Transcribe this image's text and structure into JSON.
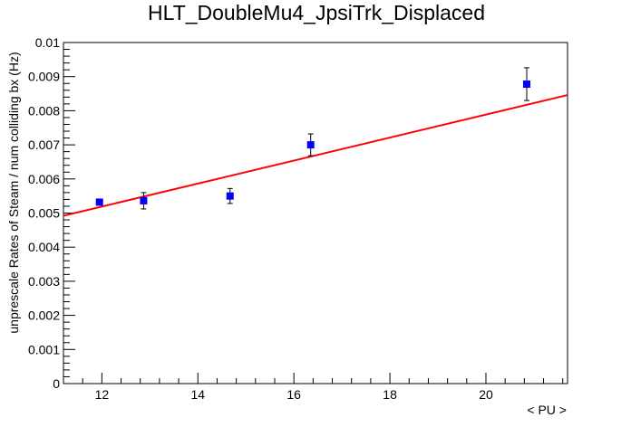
{
  "chart_data": {
    "type": "scatter",
    "title": "HLT_DoubleMu4_JpsiTrk_Displaced",
    "xlabel": "< PU >",
    "ylabel": "unprescale Rates of Steam / num colliding bx (Hz)",
    "xlim": [
      11.2,
      21.7
    ],
    "ylim": [
      0,
      0.01
    ],
    "x_ticks": [
      12,
      14,
      16,
      18,
      20
    ],
    "x_tick_labels": [
      "12",
      "14",
      "16",
      "18",
      "20"
    ],
    "y_ticks": [
      0,
      0.001,
      0.002,
      0.003,
      0.004,
      0.005,
      0.006,
      0.007,
      0.008,
      0.009,
      0.01
    ],
    "y_tick_labels": [
      "0",
      "0.001",
      "0.002",
      "0.003",
      "0.004",
      "0.005",
      "0.006",
      "0.007",
      "0.008",
      "0.009",
      "0.01"
    ],
    "grid": false,
    "legend": "none",
    "points": {
      "x": [
        11.95,
        12.87,
        14.67,
        16.35,
        20.85
      ],
      "y": [
        0.00532,
        0.00536,
        0.0055,
        0.007,
        0.00878
      ],
      "yerr": [
        8e-05,
        0.00024,
        0.00022,
        0.00032,
        0.00048
      ],
      "color": "#0000ff",
      "marker": "square"
    },
    "fit": {
      "type": "linear",
      "x": [
        11.2,
        21.7
      ],
      "y": [
        0.00492,
        0.00846
      ],
      "color": "#ff0000"
    }
  }
}
